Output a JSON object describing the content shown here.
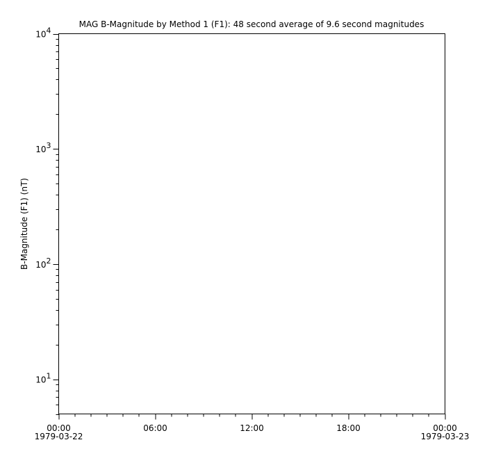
{
  "chart_data": {
    "type": "line",
    "title": "MAG  B-Magnitude by Method 1 (F1): 48 second average of 9.6 second magnitudes",
    "xlabel": "",
    "ylabel": "B-Magnitude (F1) (nT)",
    "yscale": "log",
    "ylim": [
      5,
      10000
    ],
    "xlim": [
      "1979-03-22 00:00",
      "1979-03-23 00:00"
    ],
    "x_ticks": [
      {
        "time": "00:00",
        "date": "1979-03-22"
      },
      {
        "time": "06:00",
        "date": ""
      },
      {
        "time": "12:00",
        "date": ""
      },
      {
        "time": "18:00",
        "date": ""
      },
      {
        "time": "00:00",
        "date": "1979-03-23"
      }
    ],
    "y_ticks": [
      {
        "base": "10",
        "exp": "1",
        "value": 10
      },
      {
        "base": "10",
        "exp": "2",
        "value": 100
      },
      {
        "base": "10",
        "exp": "3",
        "value": 1000
      },
      {
        "base": "10",
        "exp": "4",
        "value": 10000
      }
    ],
    "grid": false,
    "series": []
  }
}
